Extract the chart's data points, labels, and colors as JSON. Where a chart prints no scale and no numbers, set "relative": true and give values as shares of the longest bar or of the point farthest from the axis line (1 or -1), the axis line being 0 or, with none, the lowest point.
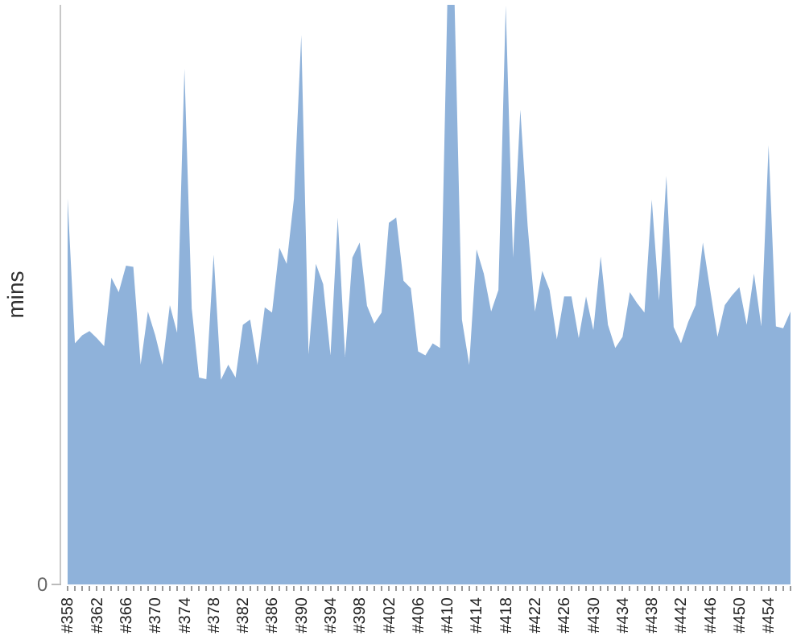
{
  "chart_data": {
    "type": "area",
    "ylabel": "mins",
    "relative": true,
    "color": "#8fb2da",
    "annotations": [
      "0"
    ],
    "categories": [
      "#358",
      null,
      null,
      null,
      "#362",
      null,
      null,
      null,
      "#366",
      null,
      null,
      null,
      "#370",
      null,
      null,
      null,
      "#374",
      null,
      null,
      null,
      "#378",
      null,
      null,
      null,
      "#382",
      null,
      null,
      null,
      "#386",
      null,
      null,
      null,
      "#390",
      null,
      null,
      null,
      "#394",
      null,
      null,
      null,
      "#398",
      null,
      null,
      null,
      "#402",
      null,
      null,
      null,
      "#406",
      null,
      null,
      null,
      "#410",
      null,
      null,
      null,
      "#414",
      null,
      null,
      null,
      "#418",
      null,
      null,
      null,
      "#422",
      null,
      null,
      null,
      "#426",
      null,
      null,
      null,
      "#430",
      null,
      null,
      null,
      "#434",
      null,
      null,
      null,
      "#438",
      null,
      null,
      null,
      "#442",
      null,
      null,
      null,
      "#446",
      null,
      null,
      null,
      "#450",
      null,
      null,
      null,
      "#454",
      null,
      null,
      null
    ],
    "values": [
      0.666,
      0.416,
      0.43,
      0.437,
      0.425,
      0.411,
      0.529,
      0.504,
      0.55,
      0.548,
      0.379,
      0.471,
      0.43,
      0.379,
      0.482,
      0.434,
      0.89,
      0.476,
      0.357,
      0.354,
      0.569,
      0.353,
      0.379,
      0.357,
      0.448,
      0.457,
      0.379,
      0.478,
      0.469,
      0.581,
      0.553,
      0.666,
      0.948,
      0.397,
      0.553,
      0.518,
      0.395,
      0.633,
      0.393,
      0.564,
      0.59,
      0.481,
      0.45,
      0.469,
      0.624,
      0.633,
      0.524,
      0.511,
      0.402,
      0.395,
      0.416,
      0.408,
      1,
      1,
      0.457,
      0.379,
      0.578,
      0.536,
      0.471,
      0.508,
      0.999,
      0.564,
      0.819,
      0.619,
      0.471,
      0.541,
      0.508,
      0.423,
      0.497,
      0.497,
      0.425,
      0.497,
      0.439,
      0.566,
      0.448,
      0.408,
      0.427,
      0.504,
      0.485,
      0.469,
      0.664,
      0.49,
      0.705,
      0.444,
      0.416,
      0.453,
      0.482,
      0.59,
      0.508,
      0.427,
      0.482,
      0.499,
      0.513,
      0.448,
      0.536,
      0.445,
      0.758,
      0.445,
      0.442,
      0.471
    ]
  }
}
